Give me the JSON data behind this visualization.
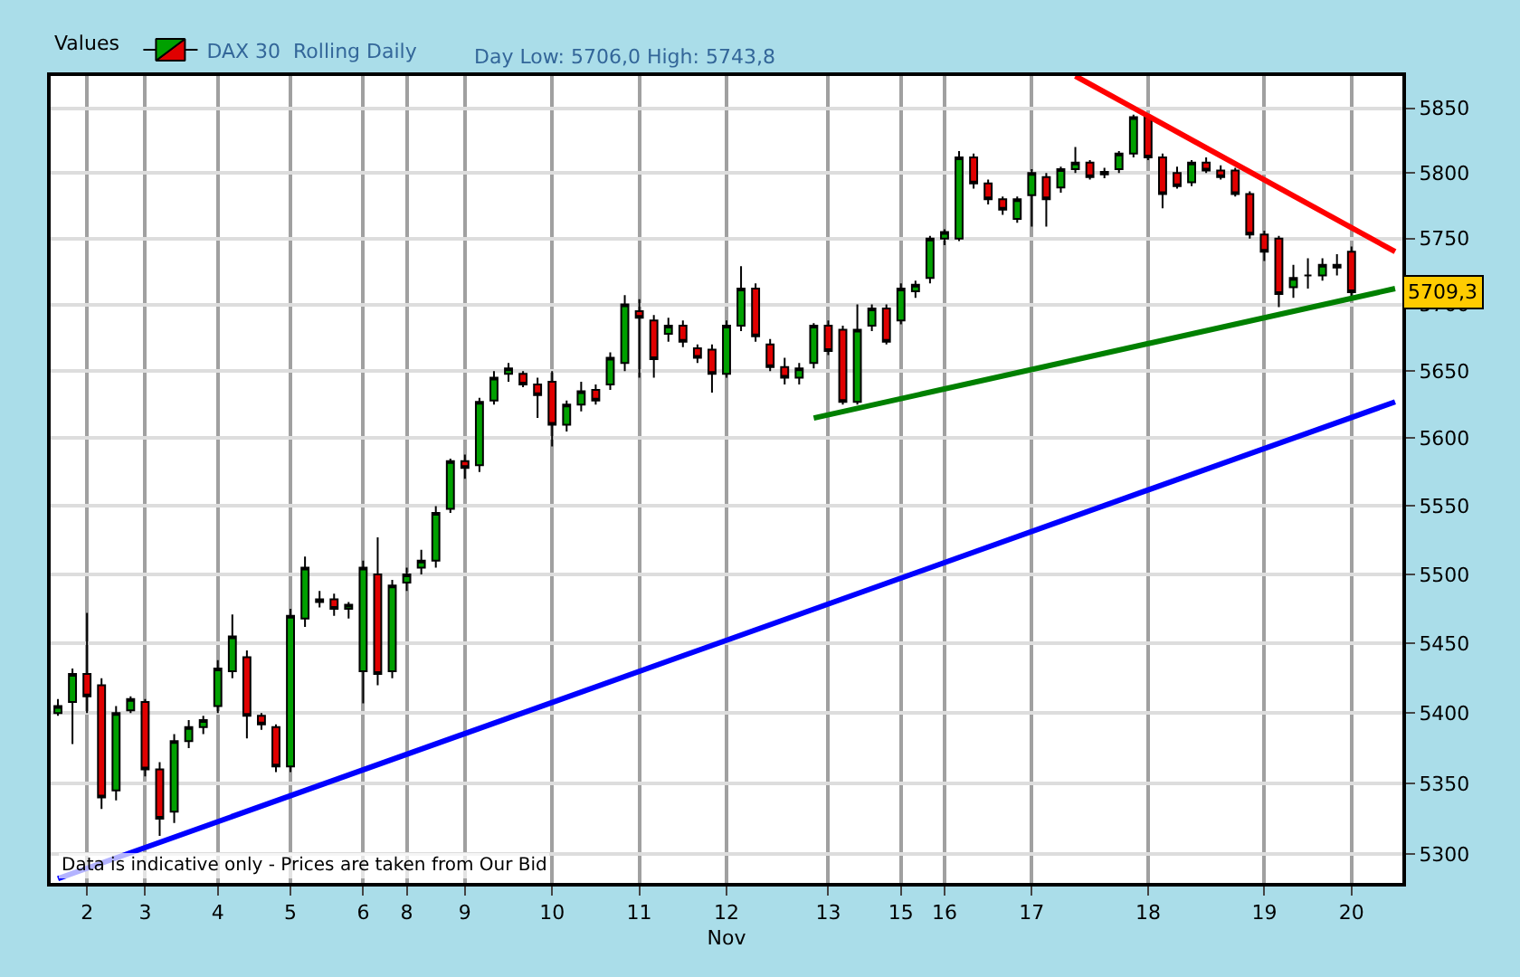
{
  "chart_data": {
    "type": "candlestick",
    "legend_title": "Values",
    "subtitle": "Day Low: 5706,0 High: 5743,8",
    "xlabel": "Nov",
    "annotations": [
      "Data is indicative only - Prices are taken from Our Bid",
      {
        "text": "5709,3",
        "y": 5709.3
      }
    ],
    "log": "y",
    "grid": true,
    "legend": "top left",
    "ylim": [
      5280,
      5875
    ],
    "yticks": [
      5300,
      5350,
      5400,
      5450,
      5500,
      5550,
      5600,
      5650,
      5700,
      5750,
      5800,
      5850
    ],
    "categories": [
      null,
      null,
      "2",
      null,
      null,
      null,
      "3",
      null,
      null,
      null,
      null,
      "4",
      null,
      null,
      null,
      null,
      "5",
      null,
      null,
      null,
      null,
      "6",
      null,
      null,
      "8",
      null,
      null,
      null,
      "9",
      null,
      null,
      null,
      null,
      null,
      "10",
      null,
      null,
      null,
      null,
      null,
      "11",
      null,
      null,
      null,
      null,
      null,
      "12",
      null,
      null,
      null,
      null,
      null,
      null,
      "13",
      null,
      null,
      null,
      null,
      "15",
      null,
      null,
      "16",
      null,
      null,
      null,
      null,
      null,
      "17",
      null,
      null,
      null,
      null,
      null,
      null,
      null,
      "18",
      null,
      null,
      null,
      null,
      null,
      null,
      null,
      "19",
      null,
      null,
      null,
      null,
      null,
      "20",
      null,
      null,
      null
    ],
    "series": [
      {
        "name": "DAX 30  Rolling Daily",
        "ohlc": [
          [
            5400,
            5410,
            5398,
            5405
          ],
          [
            5408,
            5432,
            5378,
            5428
          ],
          [
            5428,
            5472,
            5400,
            5412
          ],
          [
            5420,
            5425,
            5332,
            5340
          ],
          [
            5345,
            5405,
            5338,
            5400
          ],
          [
            5402,
            5412,
            5400,
            5410
          ],
          [
            5408,
            5410,
            5355,
            5360
          ],
          [
            5360,
            5365,
            5313,
            5325
          ],
          [
            5330,
            5385,
            5322,
            5380
          ],
          [
            5380,
            5395,
            5375,
            5390
          ],
          [
            5390,
            5398,
            5385,
            5395
          ],
          [
            5405,
            5438,
            5400,
            5432
          ],
          [
            5430,
            5471,
            5425,
            5455
          ],
          [
            5440,
            5445,
            5382,
            5398
          ],
          [
            5398,
            5400,
            5388,
            5392
          ],
          [
            5390,
            5392,
            5358,
            5362
          ],
          [
            5362,
            5475,
            5358,
            5470
          ],
          [
            5468,
            5513,
            5462,
            5505
          ],
          [
            5480,
            5488,
            5476,
            5482
          ],
          [
            5482,
            5486,
            5470,
            5475
          ],
          [
            5475,
            5480,
            5468,
            5478
          ],
          [
            5430,
            5510,
            5407,
            5505
          ],
          [
            5500,
            5527,
            5420,
            5428
          ],
          [
            5430,
            5496,
            5425,
            5492
          ],
          [
            5494,
            5505,
            5488,
            5500
          ],
          [
            5505,
            5518,
            5500,
            5510
          ],
          [
            5510,
            5550,
            5505,
            5545
          ],
          [
            5548,
            5585,
            5545,
            5583
          ],
          [
            5583,
            5588,
            5570,
            5578
          ],
          [
            5580,
            5630,
            5575,
            5627
          ],
          [
            5628,
            5650,
            5625,
            5645
          ],
          [
            5648,
            5656,
            5642,
            5652
          ],
          [
            5648,
            5650,
            5638,
            5640
          ],
          [
            5640,
            5645,
            5615,
            5632
          ],
          [
            5642,
            5650,
            5594,
            5610
          ],
          [
            5610,
            5628,
            5605,
            5625
          ],
          [
            5625,
            5642,
            5620,
            5635
          ],
          [
            5636,
            5640,
            5625,
            5628
          ],
          [
            5640,
            5664,
            5636,
            5660
          ],
          [
            5656,
            5707,
            5650,
            5700
          ],
          [
            5695,
            5704,
            5645,
            5690
          ],
          [
            5688,
            5692,
            5645,
            5659
          ],
          [
            5678,
            5690,
            5672,
            5684
          ],
          [
            5684,
            5688,
            5668,
            5672
          ],
          [
            5667,
            5670,
            5656,
            5660
          ],
          [
            5666,
            5670,
            5634,
            5648
          ],
          [
            5648,
            5688,
            5645,
            5684
          ],
          [
            5684,
            5729,
            5680,
            5712
          ],
          [
            5712,
            5716,
            5672,
            5676
          ],
          [
            5670,
            5674,
            5650,
            5653
          ],
          [
            5653,
            5660,
            5640,
            5645
          ],
          [
            5645,
            5656,
            5640,
            5652
          ],
          [
            5656,
            5686,
            5652,
            5684
          ],
          [
            5684,
            5688,
            5662,
            5665
          ],
          [
            5681,
            5684,
            5625,
            5627
          ],
          [
            5627,
            5700,
            5625,
            5681
          ],
          [
            5684,
            5700,
            5680,
            5697
          ],
          [
            5697,
            5700,
            5670,
            5672
          ],
          [
            5688,
            5716,
            5685,
            5712
          ],
          [
            5710,
            5718,
            5705,
            5715
          ],
          [
            5720,
            5752,
            5716,
            5750
          ],
          [
            5750,
            5757,
            5745,
            5755
          ],
          [
            5750,
            5817,
            5748,
            5812
          ],
          [
            5812,
            5815,
            5788,
            5792
          ],
          [
            5792,
            5795,
            5776,
            5780
          ],
          [
            5780,
            5782,
            5768,
            5772
          ],
          [
            5765,
            5782,
            5762,
            5780
          ],
          [
            5783,
            5803,
            5759,
            5800
          ],
          [
            5797,
            5800,
            5759,
            5780
          ],
          [
            5789,
            5805,
            5785,
            5803
          ],
          [
            5803,
            5820,
            5800,
            5808
          ],
          [
            5808,
            5810,
            5795,
            5797
          ],
          [
            5799,
            5804,
            5796,
            5801
          ],
          [
            5803,
            5817,
            5800,
            5815
          ],
          [
            5815,
            5845,
            5812,
            5843
          ],
          [
            5843,
            5845,
            5810,
            5812
          ],
          [
            5812,
            5815,
            5773,
            5784
          ],
          [
            5800,
            5805,
            5788,
            5790
          ],
          [
            5793,
            5810,
            5790,
            5808
          ],
          [
            5808,
            5812,
            5800,
            5802
          ],
          [
            5802,
            5806,
            5795,
            5797
          ],
          [
            5802,
            5804,
            5782,
            5784
          ],
          [
            5784,
            5786,
            5750,
            5753
          ],
          [
            5753,
            5756,
            5733,
            5740
          ],
          [
            5750,
            5752,
            5698,
            5708
          ],
          [
            5713,
            5730,
            5705,
            5720
          ],
          [
            5722,
            5735,
            5712,
            5722
          ],
          [
            5722,
            5735,
            5718,
            5730
          ],
          [
            5730,
            5738,
            5722,
            5728
          ],
          [
            5740,
            5744,
            5706,
            5709.3
          ],
          null,
          null,
          null
        ]
      },
      {
        "type": "line",
        "color": "#ff0000",
        "values": [
          null,
          null,
          null,
          null,
          null,
          null,
          null,
          null,
          null,
          null,
          null,
          null,
          null,
          null,
          null,
          null,
          null,
          null,
          null,
          null,
          null,
          null,
          null,
          null,
          null,
          null,
          null,
          null,
          null,
          null,
          null,
          null,
          null,
          null,
          null,
          null,
          null,
          null,
          null,
          null,
          null,
          null,
          null,
          null,
          null,
          null,
          null,
          null,
          null,
          null,
          null,
          null,
          null,
          null,
          null,
          null,
          null,
          null,
          null,
          null,
          null,
          null,
          null,
          null,
          null,
          null,
          null,
          null,
          null,
          null,
          5875,
          null,
          null,
          null,
          null,
          null,
          null,
          null,
          null,
          null,
          null,
          null,
          null,
          null,
          null,
          null,
          null,
          null,
          null,
          null,
          null,
          null,
          5740
        ]
      },
      {
        "type": "line",
        "color": "#008000",
        "values": [
          null,
          null,
          null,
          null,
          null,
          null,
          null,
          null,
          null,
          null,
          null,
          null,
          null,
          null,
          null,
          null,
          null,
          null,
          null,
          null,
          null,
          null,
          null,
          null,
          null,
          null,
          null,
          null,
          null,
          null,
          null,
          null,
          null,
          null,
          null,
          null,
          null,
          null,
          null,
          null,
          null,
          null,
          null,
          null,
          null,
          null,
          null,
          null,
          null,
          null,
          null,
          null,
          5615,
          null,
          null,
          null,
          null,
          null,
          null,
          null,
          null,
          null,
          null,
          null,
          null,
          null,
          null,
          null,
          null,
          null,
          null,
          null,
          null,
          null,
          null,
          null,
          null,
          null,
          null,
          null,
          null,
          null,
          null,
          null,
          null,
          null,
          null,
          null,
          null,
          null,
          null,
          null,
          5712
        ]
      },
      {
        "type": "line",
        "color": "#0000ff",
        "values": [
          5283,
          null,
          null,
          null,
          null,
          null,
          null,
          null,
          null,
          null,
          null,
          null,
          null,
          null,
          null,
          null,
          null,
          null,
          null,
          null,
          null,
          null,
          null,
          null,
          null,
          null,
          null,
          null,
          null,
          null,
          null,
          null,
          null,
          null,
          null,
          null,
          null,
          null,
          null,
          null,
          null,
          null,
          null,
          null,
          null,
          null,
          null,
          null,
          null,
          null,
          null,
          null,
          null,
          null,
          null,
          null,
          null,
          null,
          null,
          null,
          null,
          null,
          null,
          null,
          null,
          null,
          null,
          null,
          null,
          null,
          null,
          null,
          null,
          null,
          null,
          null,
          null,
          null,
          null,
          null,
          null,
          null,
          null,
          null,
          null,
          null,
          null,
          null,
          null,
          null,
          null,
          null,
          5627
        ]
      }
    ]
  }
}
